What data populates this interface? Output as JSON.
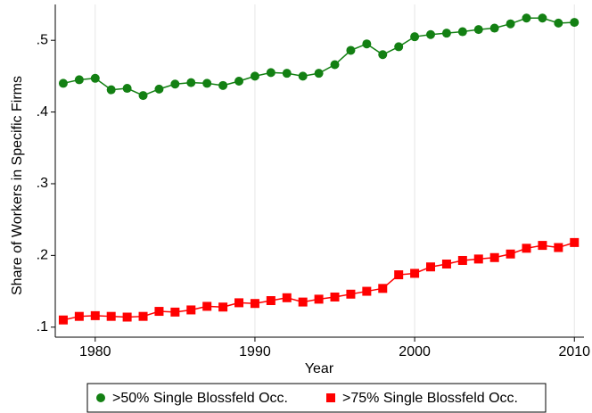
{
  "chart_data": {
    "type": "line",
    "y_label": "Share of Workers in Specific Firms",
    "x_label": "Year",
    "x": [
      1978,
      1979,
      1980,
      1981,
      1982,
      1983,
      1984,
      1985,
      1986,
      1987,
      1988,
      1989,
      1990,
      1991,
      1992,
      1993,
      1994,
      1995,
      1996,
      1997,
      1998,
      1999,
      2000,
      2001,
      2002,
      2003,
      2004,
      2005,
      2006,
      2007,
      2008,
      2009,
      2010
    ],
    "series": [
      {
        "name": ">50% Single Blossfeld Occ.",
        "color": "#138013",
        "marker": "circle",
        "values": [
          0.44,
          0.445,
          0.447,
          0.431,
          0.433,
          0.423,
          0.432,
          0.439,
          0.441,
          0.44,
          0.437,
          0.443,
          0.45,
          0.455,
          0.454,
          0.45,
          0.454,
          0.466,
          0.486,
          0.495,
          0.48,
          0.491,
          0.505,
          0.508,
          0.51,
          0.512,
          0.515,
          0.517,
          0.523,
          0.531,
          0.531,
          0.524,
          0.525
        ]
      },
      {
        "name": ">75% Single Blossfeld Occ.",
        "color": "#ff0000",
        "marker": "square",
        "values": [
          0.11,
          0.115,
          0.116,
          0.115,
          0.114,
          0.115,
          0.122,
          0.121,
          0.124,
          0.129,
          0.128,
          0.134,
          0.133,
          0.137,
          0.141,
          0.135,
          0.139,
          0.142,
          0.146,
          0.15,
          0.154,
          0.173,
          0.175,
          0.184,
          0.188,
          0.193,
          0.195,
          0.197,
          0.202,
          0.21,
          0.214,
          0.211,
          0.218
        ]
      }
    ],
    "xlim": [
      1977.5,
      2010.6
    ],
    "xticks": [
      1980,
      1990,
      2000,
      2010
    ],
    "ylim": [
      0.086,
      0.55
    ],
    "yticks": [
      {
        "value": 0.1,
        "label": ".1"
      },
      {
        "value": 0.2,
        "label": ".2"
      },
      {
        "value": 0.3,
        "label": ".3"
      },
      {
        "value": 0.4,
        "label": ".4"
      },
      {
        "value": 0.5,
        "label": ".5"
      }
    ],
    "grid": true,
    "legend": "bottom"
  }
}
